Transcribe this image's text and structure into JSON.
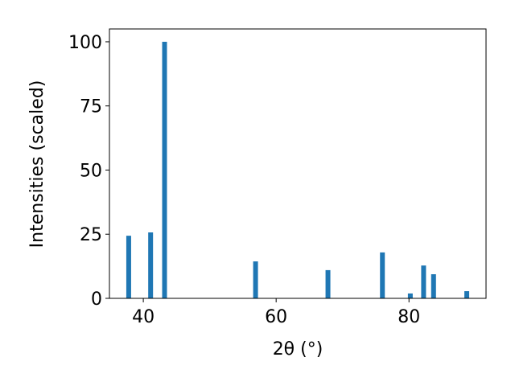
{
  "chart_data": {
    "type": "bar",
    "x": [
      37.8,
      41.1,
      43.2,
      56.9,
      67.8,
      76.0,
      80.2,
      82.2,
      83.7,
      88.7
    ],
    "values": [
      24.4,
      25.7,
      100,
      14.4,
      11,
      17.9,
      1.9,
      12.8,
      9.4,
      2.8
    ],
    "color": "#1f77b4",
    "xlabel": "2θ (°)",
    "ylabel": "Intensities (scaled)",
    "xlim": [
      34.9,
      91.6
    ],
    "xticks": [
      40,
      60,
      80
    ],
    "ylim": [
      0,
      105
    ],
    "yticks": [
      0,
      25,
      50,
      75,
      100
    ],
    "grid": false
  }
}
